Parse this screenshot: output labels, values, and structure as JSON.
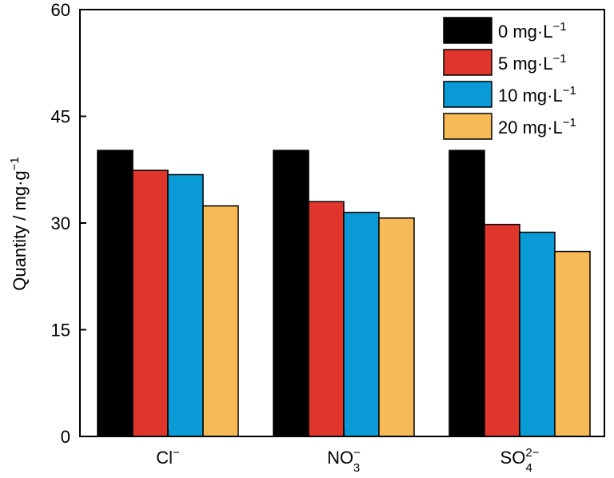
{
  "chart_data": {
    "type": "bar",
    "categories": [
      {
        "base": "Cl",
        "sub": "",
        "sup": "−"
      },
      {
        "base": "NO",
        "sub": "3",
        "sup": "−"
      },
      {
        "base": "SO",
        "sub": "4",
        "sup": "2−"
      }
    ],
    "series": [
      {
        "name": {
          "base": "0 mg·L",
          "sup": "−1"
        },
        "color": "#000000",
        "values": [
          40.2,
          40.2,
          40.2
        ]
      },
      {
        "name": {
          "base": "5 mg·L",
          "sup": "−1"
        },
        "color": "#E0352A",
        "values": [
          37.4,
          33.0,
          29.8
        ]
      },
      {
        "name": {
          "base": "10 mg·L",
          "sup": "−1"
        },
        "color": "#0A9BD7",
        "values": [
          36.8,
          31.5,
          28.7
        ]
      },
      {
        "name": {
          "base": "20 mg·L",
          "sup": "−1"
        },
        "color": "#F7BA57",
        "values": [
          32.4,
          30.7,
          26.0
        ]
      }
    ],
    "ylabel": {
      "base": "Quantity / mg·g",
      "sup": "−1"
    },
    "ylim": [
      0,
      60
    ],
    "yticks": [
      "0",
      "15",
      "30",
      "45",
      "60"
    ],
    "legend_position": "top-right",
    "grid": false
  }
}
